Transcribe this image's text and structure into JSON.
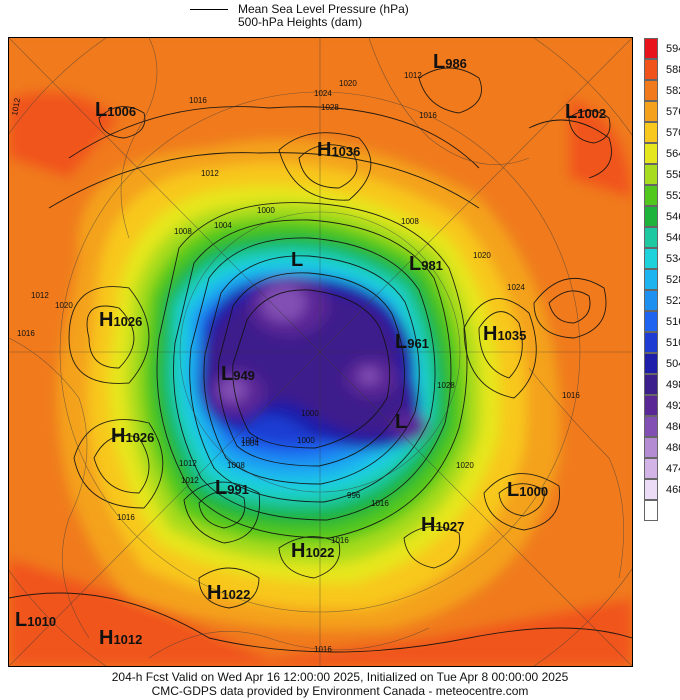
{
  "legend": {
    "pressure_label": "Mean Sea Level Pressure (hPa)",
    "heights_label": "500-hPa Heights (dam)"
  },
  "centers": [
    {
      "type": "L",
      "value": "986"
    },
    {
      "type": "L",
      "value": "1006"
    },
    {
      "type": "L",
      "value": "1002"
    },
    {
      "type": "H",
      "value": "1036"
    },
    {
      "type": "L",
      "value": "981"
    },
    {
      "type": "H",
      "value": "1026"
    },
    {
      "type": "H",
      "value": "1035"
    },
    {
      "type": "L",
      "value": "961"
    },
    {
      "type": "L",
      "value": "949"
    },
    {
      "type": "H",
      "value": "1026"
    },
    {
      "type": "L",
      "value": "991"
    },
    {
      "type": "L",
      "value": "1000"
    },
    {
      "type": "H",
      "value": "1027"
    },
    {
      "type": "H",
      "value": "1022"
    },
    {
      "type": "H",
      "value": "1022"
    },
    {
      "type": "L",
      "value": "1010"
    },
    {
      "type": "H",
      "value": "1012"
    },
    {
      "type": "L",
      "value": ""
    },
    {
      "type": "L",
      "value": ""
    }
  ],
  "isobar_labels": [
    "1012",
    "1016",
    "1020",
    "1024",
    "1028",
    "1012",
    "1016",
    "1008",
    "1004",
    "1000",
    "1008",
    "1012",
    "1020",
    "1024",
    "1028",
    "1004",
    "1000",
    "1016",
    "1012",
    "1016",
    "1020",
    "1016",
    "1012",
    "1016",
    "1008",
    "1004",
    "1000",
    "996",
    "1016",
    "1020",
    "1012",
    "1016"
  ],
  "color_scale": [
    {
      "value": "594",
      "color": "#e8121a"
    },
    {
      "value": "588",
      "color": "#f0541b"
    },
    {
      "value": "582",
      "color": "#f07a1c"
    },
    {
      "value": "576",
      "color": "#f4a21e"
    },
    {
      "value": "570",
      "color": "#f8c81e"
    },
    {
      "value": "564",
      "color": "#e6e61e"
    },
    {
      "value": "558",
      "color": "#a8dc1e"
    },
    {
      "value": "552",
      "color": "#52c81e"
    },
    {
      "value": "546",
      "color": "#1eb43c"
    },
    {
      "value": "540",
      "color": "#1ec8a0"
    },
    {
      "value": "534",
      "color": "#1ed2dc"
    },
    {
      "value": "528",
      "color": "#1eb4f0"
    },
    {
      "value": "522",
      "color": "#1e90f0"
    },
    {
      "value": "516",
      "color": "#1e64f0"
    },
    {
      "value": "510",
      "color": "#1e3cd2"
    },
    {
      "value": "504",
      "color": "#1e1eaa"
    },
    {
      "value": "498",
      "color": "#3c1e8c"
    },
    {
      "value": "492",
      "color": "#5a2896"
    },
    {
      "value": "486",
      "color": "#8250b4"
    },
    {
      "value": "480",
      "color": "#b48cd2"
    },
    {
      "value": "474",
      "color": "#d2b4e6"
    },
    {
      "value": "468",
      "color": "#ecdcf5"
    },
    {
      "value": "",
      "color": "#ffffff"
    }
  ],
  "footer": {
    "line1": "204-h Fcst Valid on Wed Apr 16 12:00:00 2025, Initialized on Tue Apr  8 00:00:00 2025",
    "line2": "CMC-GDPS data provided by Environment Canada - meteocentre.com"
  }
}
